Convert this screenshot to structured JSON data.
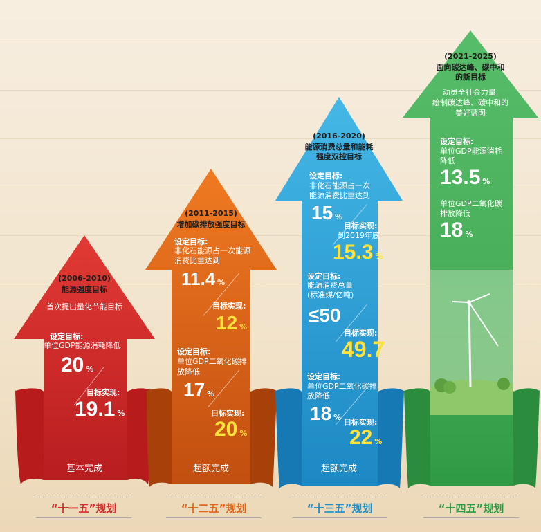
{
  "colors": {
    "red": "#d42b2a",
    "orange": "#e06618",
    "blue": "#2aa6d9",
    "green": "#3ea958",
    "yellow": "#ffe23a"
  },
  "p1": {
    "years": "(2006-2010)",
    "title": "能源强度目标",
    "desc": "首次提出量化节能目标",
    "target_label": "设定目标:",
    "target_text": "单位GDP能源消耗降低",
    "target_value": "20",
    "target_unit": "%",
    "achieved_label": "目标实现:",
    "achieved_value": "19.1",
    "achieved_unit": "%",
    "status": "基本完成",
    "plan_label": "“十一五”规划"
  },
  "p2": {
    "years": "(2011-2015)",
    "title": "增加碳排放强度目标",
    "t1_label": "设定目标:",
    "t1_text_1": "非化石能源占一次能源",
    "t1_text_2": "消费比重达到",
    "t1_value": "11.4",
    "t1_unit": "%",
    "a1_label": "目标实现:",
    "a1_value": "12",
    "a1_unit": "%",
    "t2_label": "设定目标:",
    "t2_text_1": "单位GDP二氧化碳排",
    "t2_text_2": "放降低",
    "t2_value": "17",
    "t2_unit": "%",
    "a2_label": "目标实现:",
    "a2_value": "20",
    "a2_unit": "%",
    "status": "超额完成",
    "plan_label": "“十二五”规划"
  },
  "p3": {
    "years": "(2016-2020)",
    "title_1": "能源消费总量和能耗",
    "title_2": "强度双控目标",
    "t1_label": "设定目标:",
    "t1_text_1": "非化石能源占一次",
    "t1_text_2": "能源消费比重达到",
    "t1_value": "15",
    "t1_unit": "%",
    "a1_label": "目标实现:",
    "a1_note": "到2019年底",
    "a1_value": "15.3",
    "a1_unit": "%",
    "t2_label": "设定目标:",
    "t2_text_1": "能源消费总量",
    "t2_text_2": "(标准煤/亿吨)",
    "t2_value": "≤50",
    "a2_label": "目标实现:",
    "a2_value": "49.7",
    "t3_label": "设定目标:",
    "t3_text_1": "单位GDP二氧化碳排",
    "t3_text_2": "放降低",
    "t3_value": "18",
    "t3_unit": "%",
    "a3_label": "目标实现:",
    "a3_value": "22",
    "a3_unit": "%",
    "status": "超额完成",
    "plan_label": "“十三五”规划"
  },
  "p4": {
    "years": "(2021-2025)",
    "title_1": "面向碳达峰、碳中和",
    "title_2": "的新目标",
    "desc_1": "动员全社会力量,",
    "desc_2": "绘制碳达峰、碳中和的",
    "desc_3": "美好蓝图",
    "t_label": "设定目标:",
    "t1_text_1": "单位GDP能源消耗",
    "t1_text_2": "降低",
    "t1_value": "13.5",
    "t1_unit": "%",
    "t2_text_1": "单位GDP二氧化碳",
    "t2_text_2": "排放降低",
    "t2_value": "18",
    "t2_unit": "%",
    "plan_label": "“十四五”规划"
  }
}
